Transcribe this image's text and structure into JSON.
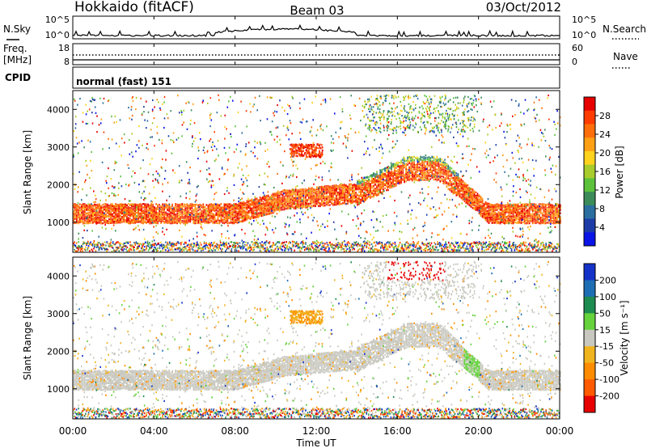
{
  "header": {
    "station": "Hokkaido (fitACF)",
    "beam": "Beam 03",
    "date": "03/Oct/2012"
  },
  "noise_panel": {
    "left_label": "N.Sky",
    "right_label": "N.Search",
    "y_ticks_left": [
      "10^5",
      "10^0"
    ],
    "y_ticks_right": [
      "10^5",
      "10^0"
    ]
  },
  "freq_panel": {
    "left_label_line1": "Freq.",
    "left_label_line2": "[MHz]",
    "right_label": "Nave",
    "y_ticks_left": [
      "18",
      "8"
    ],
    "y_ticks_right": [
      "60",
      "0"
    ]
  },
  "cpid_panel": {
    "label": "CPID",
    "value": "normal (fast) 151"
  },
  "chart_data": [
    {
      "type": "heatmap",
      "quantity": "Power",
      "ylabel": "Slant Range [km]",
      "yticks": [
        "1000",
        "2000",
        "3000",
        "4000"
      ],
      "ylim": [
        200,
        4500
      ],
      "xlim_hours": [
        0,
        24
      ],
      "colorbar": {
        "label": "Power [dB]",
        "ticks": [
          "4",
          "8",
          "12",
          "16",
          "20",
          "24",
          "28"
        ],
        "colors": [
          "#0a14e6",
          "#1e3ca8",
          "#2a6fa0",
          "#3c8c5a",
          "#5cc23c",
          "#a8cc2c",
          "#ffd21e",
          "#ffa014",
          "#ff6e0a",
          "#ff3c00",
          "#e60000"
        ]
      }
    },
    {
      "type": "heatmap",
      "quantity": "Velocity",
      "ylabel": "Slant Range [km]",
      "yticks": [
        "1000",
        "2000",
        "3000",
        "4000"
      ],
      "ylim": [
        200,
        4500
      ],
      "xlim_hours": [
        0,
        24
      ],
      "colorbar": {
        "label": "Velocity [m s⁻¹]",
        "ticks": [
          "200",
          "100",
          "50",
          "15",
          "-15",
          "-50",
          "-100",
          "-200"
        ],
        "colors": [
          "#1432c8",
          "#1e6eb4",
          "#1e8c50",
          "#66d23c",
          "#c8c8c0",
          "#f0b41e",
          "#ff8c00",
          "#ff5a00",
          "#e60000"
        ]
      }
    }
  ],
  "xaxis": {
    "label": "Time UT",
    "ticks": [
      "00:00",
      "04:00",
      "08:00",
      "12:00",
      "16:00",
      "20:00",
      "00:00"
    ]
  }
}
